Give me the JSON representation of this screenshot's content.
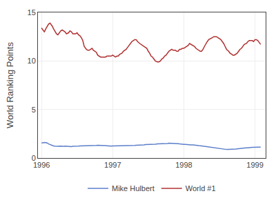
{
  "chart_data": {
    "type": "line",
    "ylabel": "World Ranking Points",
    "x": [
      1996.0,
      1996.02,
      1996.04,
      1996.06,
      1996.08,
      1996.1,
      1996.12,
      1996.15,
      1996.17,
      1996.19,
      1996.21,
      1996.23,
      1996.25,
      1996.27,
      1996.29,
      1996.31,
      1996.33,
      1996.35,
      1996.38,
      1996.4,
      1996.42,
      1996.44,
      1996.46,
      1996.48,
      1996.5,
      1996.52,
      1996.54,
      1996.56,
      1996.58,
      1996.6,
      1996.63,
      1996.65,
      1996.67,
      1996.69,
      1996.71,
      1996.73,
      1996.75,
      1996.77,
      1996.79,
      1996.81,
      1996.83,
      1996.85,
      1996.88,
      1996.9,
      1996.92,
      1996.94,
      1996.96,
      1996.98,
      1997.0,
      1997.02,
      1997.04,
      1997.06,
      1997.08,
      1997.1,
      1997.13,
      1997.15,
      1997.17,
      1997.19,
      1997.21,
      1997.23,
      1997.25,
      1997.27,
      1997.29,
      1997.31,
      1997.33,
      1997.35,
      1997.38,
      1997.4,
      1997.42,
      1997.44,
      1997.46,
      1997.48,
      1997.5,
      1997.52,
      1997.54,
      1997.56,
      1997.58,
      1997.6,
      1997.63,
      1997.65,
      1997.67,
      1997.69,
      1997.71,
      1997.73,
      1997.75,
      1997.77,
      1997.79,
      1997.81,
      1997.83,
      1997.85,
      1997.88,
      1997.9,
      1997.92,
      1997.94,
      1997.96,
      1997.98,
      1998.0,
      1998.02,
      1998.04,
      1998.06,
      1998.08,
      1998.1,
      1998.13,
      1998.15,
      1998.17,
      1998.19,
      1998.21,
      1998.23,
      1998.25,
      1998.27,
      1998.29,
      1998.31,
      1998.33,
      1998.35,
      1998.38,
      1998.4,
      1998.42,
      1998.44,
      1998.46,
      1998.48,
      1998.5,
      1998.52,
      1998.54,
      1998.56,
      1998.58,
      1998.6,
      1998.63,
      1998.65,
      1998.67,
      1998.69,
      1998.71,
      1998.73,
      1998.75,
      1998.77,
      1998.79,
      1998.81,
      1998.83,
      1998.85,
      1998.88,
      1998.9,
      1998.92,
      1998.94,
      1998.96,
      1998.98,
      1999.0,
      1999.02,
      1999.04,
      1999.06,
      1999.08
    ],
    "series": [
      {
        "name": "Mike Hulbert",
        "color": "#5b7ec9",
        "values": [
          1.55,
          1.58,
          1.6,
          1.58,
          1.55,
          1.45,
          1.38,
          1.3,
          1.25,
          1.22,
          1.2,
          1.2,
          1.22,
          1.2,
          1.18,
          1.2,
          1.22,
          1.2,
          1.2,
          1.2,
          1.18,
          1.2,
          1.2,
          1.18,
          1.2,
          1.22,
          1.25,
          1.25,
          1.28,
          1.3,
          1.3,
          1.28,
          1.25,
          1.28,
          1.3,
          1.28,
          1.3,
          1.3,
          1.32,
          1.3,
          1.3,
          1.3,
          1.28,
          1.28,
          1.25,
          1.25,
          1.25,
          1.22,
          1.25,
          1.25,
          1.28,
          1.28,
          1.3,
          1.3,
          1.28,
          1.25,
          1.25,
          1.25,
          1.25,
          1.28,
          1.28,
          1.28,
          1.3,
          1.3,
          1.32,
          1.32,
          1.32,
          1.35,
          1.35,
          1.35,
          1.38,
          1.38,
          1.38,
          1.38,
          1.4,
          1.42,
          1.42,
          1.42,
          1.45,
          1.45,
          1.48,
          1.48,
          1.5,
          1.5,
          1.5,
          1.5,
          1.52,
          1.52,
          1.52,
          1.5,
          1.5,
          1.48,
          1.48,
          1.45,
          1.42,
          1.4,
          1.4,
          1.4,
          1.38,
          1.38,
          1.38,
          1.35,
          1.35,
          1.35,
          1.32,
          1.3,
          1.28,
          1.28,
          1.25,
          1.22,
          1.2,
          1.18,
          1.15,
          1.12,
          1.1,
          1.08,
          1.05,
          1.02,
          1.0,
          0.98,
          0.95,
          0.93,
          0.9,
          0.88,
          0.88,
          0.88,
          0.88,
          0.88,
          0.9,
          0.9,
          0.92,
          0.92,
          0.95,
          0.95,
          0.98,
          1.0,
          1.02,
          1.05,
          1.05,
          1.05,
          1.08,
          1.08,
          1.1,
          1.1,
          1.12,
          1.12,
          1.12,
          1.12,
          1.12
        ]
      },
      {
        "name": "World #1",
        "color": "#b03030",
        "values": [
          13.4,
          13.2,
          13.0,
          13.3,
          13.6,
          13.8,
          13.9,
          13.6,
          13.3,
          13.0,
          12.8,
          12.7,
          12.9,
          13.1,
          13.2,
          13.1,
          13.0,
          12.8,
          12.9,
          13.1,
          13.0,
          12.8,
          12.8,
          12.8,
          12.9,
          12.7,
          12.6,
          12.4,
          12.1,
          11.5,
          11.2,
          11.1,
          11.1,
          11.2,
          11.3,
          11.1,
          11.0,
          10.9,
          10.6,
          10.5,
          10.4,
          10.4,
          10.4,
          10.4,
          10.5,
          10.5,
          10.5,
          10.5,
          10.6,
          10.5,
          10.4,
          10.5,
          10.5,
          10.7,
          10.8,
          11.0,
          11.1,
          11.2,
          11.4,
          11.6,
          11.8,
          12.0,
          12.1,
          12.2,
          12.2,
          12.0,
          11.8,
          11.7,
          11.6,
          11.5,
          11.4,
          11.3,
          11.0,
          10.8,
          10.5,
          10.4,
          10.2,
          10.0,
          9.9,
          9.9,
          10.0,
          10.2,
          10.3,
          10.5,
          10.6,
          10.8,
          11.0,
          11.1,
          11.2,
          11.1,
          11.1,
          11.0,
          11.0,
          11.2,
          11.2,
          11.3,
          11.3,
          11.4,
          11.5,
          11.6,
          11.8,
          11.7,
          11.6,
          11.5,
          11.3,
          11.2,
          11.1,
          11.0,
          11.0,
          11.2,
          11.5,
          11.8,
          12.0,
          12.2,
          12.3,
          12.4,
          12.5,
          12.5,
          12.5,
          12.4,
          12.3,
          12.2,
          12.0,
          11.8,
          11.5,
          11.2,
          11.0,
          10.8,
          10.7,
          10.6,
          10.6,
          10.7,
          10.8,
          11.0,
          11.2,
          11.3,
          11.5,
          11.7,
          11.8,
          12.0,
          12.1,
          12.1,
          12.1,
          12.0,
          12.2,
          12.2,
          12.1,
          11.9,
          11.7
        ]
      }
    ],
    "xlim": [
      1995.95,
      1999.15
    ],
    "xticks": [
      1996,
      1997,
      1998,
      1999
    ],
    "ylim": [
      0,
      15
    ],
    "yticks": [
      0,
      5,
      10,
      15
    ],
    "grid": true,
    "legend": "bottom"
  }
}
